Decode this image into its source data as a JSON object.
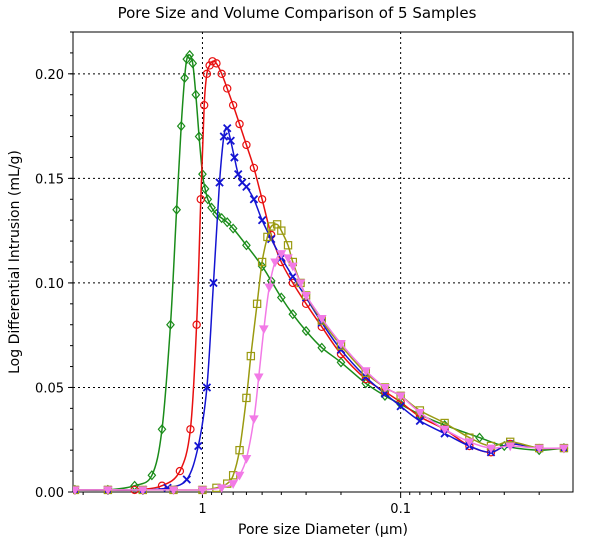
{
  "chart_data": {
    "type": "line",
    "title": "Pore Size and Volume Comparison of 5 Samples",
    "xlabel": "Pore size Diameter (µm)",
    "ylabel": "Log Differential Intrusion (mL/g)",
    "x_scale": "log",
    "x_reversed": true,
    "xlim": [
      4.5,
      0.0135
    ],
    "ylim": [
      0,
      0.22
    ],
    "x_ticks": [
      {
        "value": 1,
        "label": "1"
      },
      {
        "value": 0.1,
        "label": "0.1"
      }
    ],
    "y_ticks": [
      {
        "value": 0.0,
        "label": "0.00"
      },
      {
        "value": 0.05,
        "label": "0.05"
      },
      {
        "value": 0.1,
        "label": "0.10"
      },
      {
        "value": 0.15,
        "label": "0.15"
      },
      {
        "value": 0.2,
        "label": "0.20"
      }
    ],
    "grid": "dotted at x ticks and y ticks",
    "legend": "none",
    "series": [
      {
        "color": "#1a8c1a",
        "marker": "diamond",
        "x": [
          4.4,
          3.0,
          2.2,
          1.8,
          1.6,
          1.45,
          1.35,
          1.28,
          1.23,
          1.2,
          1.16,
          1.12,
          1.08,
          1.04,
          1.0,
          0.97,
          0.94,
          0.9,
          0.85,
          0.8,
          0.75,
          0.7,
          0.6,
          0.5,
          0.45,
          0.4,
          0.35,
          0.3,
          0.25,
          0.2,
          0.15,
          0.12,
          0.1,
          0.08,
          0.06,
          0.04,
          0.03,
          0.02,
          0.015
        ],
        "y": [
          0.001,
          0.001,
          0.003,
          0.008,
          0.03,
          0.08,
          0.135,
          0.175,
          0.198,
          0.207,
          0.209,
          0.205,
          0.19,
          0.17,
          0.152,
          0.145,
          0.14,
          0.136,
          0.133,
          0.131,
          0.129,
          0.126,
          0.118,
          0.108,
          0.101,
          0.093,
          0.085,
          0.077,
          0.069,
          0.062,
          0.052,
          0.046,
          0.042,
          0.037,
          0.032,
          0.026,
          0.022,
          0.02,
          0.021
        ]
      },
      {
        "color": "#e81010",
        "marker": "circle",
        "x": [
          4.4,
          3.0,
          2.2,
          1.6,
          1.3,
          1.15,
          1.07,
          1.02,
          0.98,
          0.95,
          0.92,
          0.89,
          0.85,
          0.8,
          0.75,
          0.7,
          0.65,
          0.6,
          0.55,
          0.5,
          0.45,
          0.4,
          0.35,
          0.3,
          0.25,
          0.2,
          0.15,
          0.12,
          0.1,
          0.08,
          0.06,
          0.045,
          0.035,
          0.028,
          0.02,
          0.015
        ],
        "y": [
          0.001,
          0.001,
          0.001,
          0.003,
          0.01,
          0.03,
          0.08,
          0.14,
          0.185,
          0.2,
          0.204,
          0.206,
          0.205,
          0.2,
          0.193,
          0.185,
          0.176,
          0.166,
          0.155,
          0.14,
          0.123,
          0.11,
          0.1,
          0.09,
          0.079,
          0.066,
          0.054,
          0.048,
          0.043,
          0.036,
          0.03,
          0.022,
          0.019,
          0.023,
          0.021,
          0.021
        ]
      },
      {
        "color": "#1414d2",
        "marker": "x",
        "x": [
          4.4,
          3.0,
          2.0,
          1.5,
          1.2,
          1.05,
          0.95,
          0.88,
          0.82,
          0.78,
          0.75,
          0.72,
          0.69,
          0.66,
          0.63,
          0.6,
          0.55,
          0.5,
          0.45,
          0.4,
          0.35,
          0.3,
          0.25,
          0.2,
          0.15,
          0.12,
          0.1,
          0.08,
          0.06,
          0.045,
          0.035,
          0.028,
          0.02,
          0.015
        ],
        "y": [
          0.001,
          0.001,
          0.001,
          0.002,
          0.006,
          0.022,
          0.05,
          0.1,
          0.148,
          0.17,
          0.174,
          0.168,
          0.16,
          0.152,
          0.148,
          0.146,
          0.14,
          0.13,
          0.121,
          0.112,
          0.103,
          0.093,
          0.081,
          0.068,
          0.055,
          0.047,
          0.041,
          0.034,
          0.028,
          0.022,
          0.019,
          0.023,
          0.021,
          0.021
        ]
      },
      {
        "color": "#9a9a10",
        "marker": "square",
        "x": [
          4.4,
          3.0,
          2.0,
          1.4,
          1.0,
          0.85,
          0.75,
          0.7,
          0.65,
          0.6,
          0.57,
          0.53,
          0.5,
          0.47,
          0.45,
          0.42,
          0.4,
          0.37,
          0.35,
          0.32,
          0.3,
          0.25,
          0.2,
          0.15,
          0.12,
          0.1,
          0.08,
          0.06,
          0.045,
          0.035,
          0.028,
          0.02,
          0.015
        ],
        "y": [
          0.001,
          0.001,
          0.001,
          0.001,
          0.001,
          0.002,
          0.004,
          0.008,
          0.02,
          0.045,
          0.065,
          0.09,
          0.11,
          0.122,
          0.127,
          0.128,
          0.125,
          0.118,
          0.11,
          0.1,
          0.094,
          0.082,
          0.07,
          0.057,
          0.05,
          0.046,
          0.039,
          0.033,
          0.026,
          0.022,
          0.024,
          0.021,
          0.021
        ]
      },
      {
        "color": "#f27ae6",
        "marker": "triangle-down",
        "x": [
          4.4,
          3.0,
          2.0,
          1.4,
          1.0,
          0.8,
          0.7,
          0.65,
          0.6,
          0.55,
          0.52,
          0.49,
          0.46,
          0.43,
          0.4,
          0.37,
          0.35,
          0.32,
          0.3,
          0.25,
          0.2,
          0.15,
          0.12,
          0.1,
          0.08,
          0.06,
          0.045,
          0.035,
          0.028,
          0.02,
          0.015
        ],
        "y": [
          0.001,
          0.001,
          0.001,
          0.001,
          0.001,
          0.002,
          0.004,
          0.008,
          0.016,
          0.035,
          0.055,
          0.078,
          0.098,
          0.11,
          0.114,
          0.112,
          0.108,
          0.1,
          0.094,
          0.083,
          0.071,
          0.058,
          0.05,
          0.046,
          0.038,
          0.03,
          0.024,
          0.021,
          0.022,
          0.021,
          0.021
        ]
      }
    ]
  }
}
